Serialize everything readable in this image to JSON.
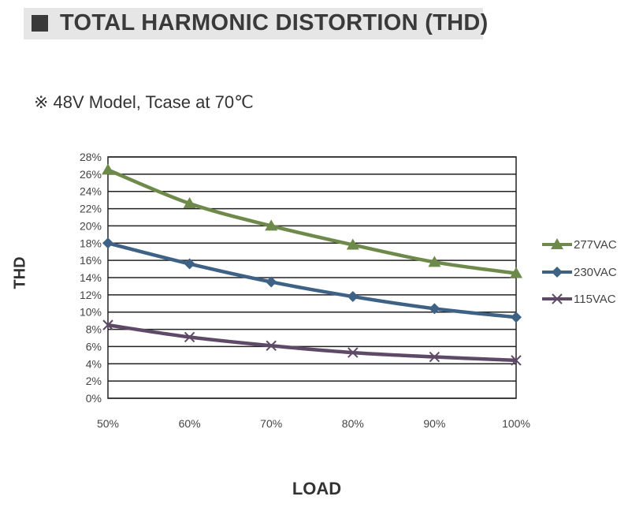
{
  "header": {
    "title": "TOTAL HARMONIC DISTORTION (THD)"
  },
  "subtitle": "※ 48V Model, Tcase at 70℃",
  "chart_data": {
    "type": "line",
    "x": [
      "50%",
      "60%",
      "70%",
      "80%",
      "90%",
      "100%"
    ],
    "xlabel": "LOAD",
    "ylabel": "THD",
    "ylim": [
      0,
      28
    ],
    "yticks": [
      "0%",
      "2%",
      "4%",
      "6%",
      "8%",
      "10%",
      "12%",
      "14%",
      "16%",
      "18%",
      "20%",
      "22%",
      "24%",
      "26%",
      "28%"
    ],
    "grid": "horizontal",
    "legend": "right",
    "series": [
      {
        "name": "277VAC",
        "values": [
          26.5,
          22.6,
          20.0,
          17.8,
          15.8,
          14.5
        ],
        "color": "#6e8a4a",
        "marker": "triangle"
      },
      {
        "name": "230VAC",
        "values": [
          18.0,
          15.6,
          13.5,
          11.8,
          10.4,
          9.4
        ],
        "color": "#3e6186",
        "marker": "diamond"
      },
      {
        "name": "115VAC",
        "values": [
          8.5,
          7.1,
          6.1,
          5.3,
          4.8,
          4.4
        ],
        "color": "#5e4a66",
        "marker": "x"
      }
    ]
  }
}
